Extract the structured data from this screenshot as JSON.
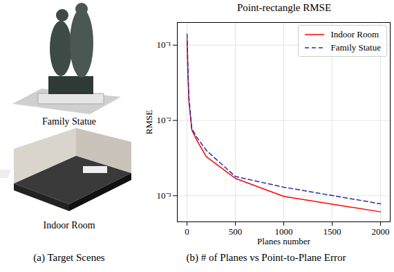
{
  "chart_data": {
    "type": "line",
    "title": "Point-rectangle RMSE",
    "xlabel": "Planes number",
    "ylabel": "RMSE",
    "x": [
      1,
      10,
      20,
      50,
      100,
      200,
      500,
      1000,
      2000
    ],
    "series": [
      {
        "name": "Indoor Room",
        "color": "red",
        "line_style": "solid",
        "values": [
          0.12,
          0.04,
          0.018,
          0.0075,
          0.0055,
          0.0033,
          0.0017,
          0.00098,
          0.00061
        ]
      },
      {
        "name": "Family Statue",
        "color": "#2a2aa8",
        "line_style": "dashed",
        "values": [
          0.14,
          0.05,
          0.02,
          0.0078,
          0.006,
          0.004,
          0.0018,
          0.0013,
          0.00078
        ]
      }
    ],
    "xlim": [
      -100,
      2100
    ],
    "xticks": [
      0,
      500,
      1000,
      1500,
      2000
    ],
    "ylim": [
      0.00045,
      0.2
    ],
    "yticks": [
      {
        "value": 0.001,
        "label": "10⁻³"
      },
      {
        "value": 0.01,
        "label": "10⁻²"
      },
      {
        "value": 0.1,
        "label": "10⁻¹"
      }
    ],
    "log": "y",
    "grid": true,
    "legend": "upper right"
  },
  "subfigures": {
    "scenes": [
      "Family Statue",
      "Indoor Room"
    ],
    "caption_a": "(a) Target Scenes",
    "caption_b": "(b) # of Planes vs Point-to-Plane Error"
  }
}
